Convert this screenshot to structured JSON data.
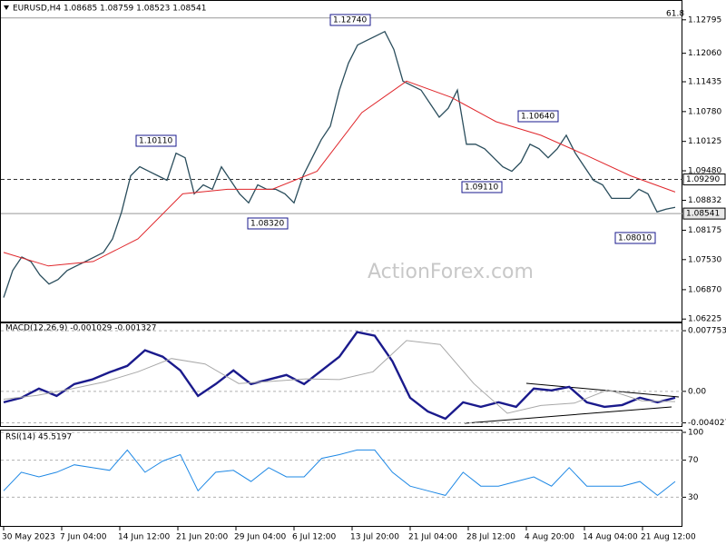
{
  "chart_data": [
    {
      "type": "line",
      "title": "EURUSD,H4  1.08685 1.08759 1.08523 1.08541",
      "watermark": "ActionForex.com",
      "grid": false,
      "ylim": [
        1.0617,
        1.1315
      ],
      "yticks": [
        1.12795,
        {
          "value": 1.1206,
          "label": "1.12060"
        },
        1.11435,
        {
          "value": 1.1078,
          "label": "1.10780"
        },
        1.10125,
        {
          "value": 1.0948,
          "label": "1.09480"
        },
        1.08832,
        1.08175,
        {
          "value": 1.0753,
          "label": "1.07530"
        },
        {
          "value": 1.0687,
          "label": "1.06870"
        },
        1.06225
      ],
      "hlines": [
        {
          "value": 1.12835,
          "label": "61.8",
          "style": "solid"
        },
        {
          "value": 1.0929,
          "label": "1.09290",
          "style": "dashed"
        },
        {
          "value": 1.08541,
          "label": "1.08541",
          "style": "solid"
        }
      ],
      "annotations": [
        {
          "label": "1.12740"
        },
        {
          "label": "1.10110"
        },
        {
          "label": "1.08320"
        },
        {
          "label": "1.10640"
        },
        {
          "label": "1.09110"
        },
        {
          "label": "1.08010"
        }
      ],
      "series": [
        {
          "color": "#2a4d5c",
          "width": 1.3,
          "values": [
            1.06697,
            1.07291,
            1.07588,
            1.07489,
            1.07192,
            1.06994,
            1.07093,
            1.07291,
            1.0739,
            1.07489,
            1.07588,
            1.07687,
            1.07984,
            1.08578,
            1.0937,
            1.09568,
            1.09469,
            1.0937,
            1.09271,
            1.09865,
            1.09766,
            1.08974,
            1.09172,
            1.09073,
            1.09568,
            1.09271,
            1.08974,
            1.08776,
            1.09172,
            1.09073,
            1.09073,
            1.08974,
            1.08776,
            1.0937,
            1.09766,
            1.10162,
            1.10459,
            1.11251,
            1.11845,
            1.12241,
            1.1234,
            1.12439,
            1.12538,
            1.12142,
            1.11449,
            1.1135,
            1.11251,
            1.10954,
            1.10657,
            1.10855,
            1.11251,
            1.10063,
            1.10063,
            1.09964,
            1.09766,
            1.09568,
            1.09469,
            1.09667,
            1.10063,
            1.09964,
            1.09766,
            1.09964,
            1.10261,
            1.09865,
            1.09568,
            1.09271,
            1.09172,
            1.08875,
            1.08875,
            1.08875,
            1.09073,
            1.08974,
            1.08578,
            1.08637,
            1.08677
          ]
        },
        {
          "color": "#e0262b",
          "width": 1,
          "values": [
            1.07687,
            1.0739,
            1.07489,
            1.07984,
            1.08974,
            1.09073,
            1.09073,
            1.09469,
            1.10756,
            1.11449,
            1.11092,
            1.10558,
            1.10261,
            1.09825,
            1.0937,
            1.09013
          ]
        }
      ]
    },
    {
      "type": "line",
      "title": "MACD(12,26,9) -0.001029 -0.001327",
      "grid": true,
      "ylim": [
        -0.00408,
        0.00869
      ],
      "yticks": [
        0.007753,
        {
          "value": 0,
          "label": "0.00"
        },
        -0.004027
      ],
      "series": [
        {
          "color": "#1a1a8c",
          "width": 2.4,
          "values": [
            -0.0014,
            -0.00082,
            0.00035,
            -0.00058,
            0.00093,
            0.00152,
            0.00245,
            0.00326,
            0.00525,
            0.00443,
            0.00268,
            -0.00058,
            0.00093,
            0.00268,
            0.00093,
            0.00152,
            0.0021,
            0.00093,
            0.00268,
            0.00443,
            0.00758,
            0.00711,
            0.00385,
            -0.00082,
            -0.00257,
            -0.0035,
            -0.0014,
            -0.00198,
            -0.0014,
            -0.00198,
            0.00035,
            0.00012,
            0.00058,
            -0.0014,
            -0.00198,
            -0.00175,
            -0.00082,
            -0.0014,
            -0.00082
          ]
        },
        {
          "color": "#a8a8a8",
          "width": 1,
          "values": [
            -0.001,
            -0.0005,
            0.0003,
            0.0012,
            0.0025,
            0.0042,
            0.0035,
            0.001,
            0.0013,
            0.0016,
            0.0015,
            0.0025,
            0.0065,
            0.006,
            0.001,
            -0.0028,
            -0.0018,
            -0.0015,
            0.0002,
            -0.0012,
            -0.0013
          ]
        }
      ]
    },
    {
      "type": "line",
      "title": "RSI(14) 45.5197",
      "grid": true,
      "ylim": [
        0,
        100
      ],
      "yticks": [
        100,
        70,
        30
      ],
      "x_labels": [
        "30 May 2023",
        "7 Jun 04:00",
        "14 Jun 12:00",
        "21 Jun 20:00",
        "29 Jun 04:00",
        "6 Jul 12:00",
        "13 Jul 20:00",
        "21 Jul 04:00",
        "28 Jul 12:00",
        "4 Aug 20:00",
        "14 Aug 04:00",
        "21 Aug 12:00"
      ],
      "series": [
        {
          "color": "#1e88e5",
          "width": 1,
          "values": [
            37,
            57,
            52,
            57,
            65,
            62,
            59,
            81,
            57,
            69,
            76,
            37,
            57,
            59,
            47,
            62,
            52,
            52,
            72,
            76,
            81,
            81,
            57,
            42,
            37,
            32,
            57,
            42,
            42,
            47,
            52,
            42,
            62,
            42,
            42,
            42,
            47,
            32,
            47
          ]
        }
      ]
    }
  ]
}
